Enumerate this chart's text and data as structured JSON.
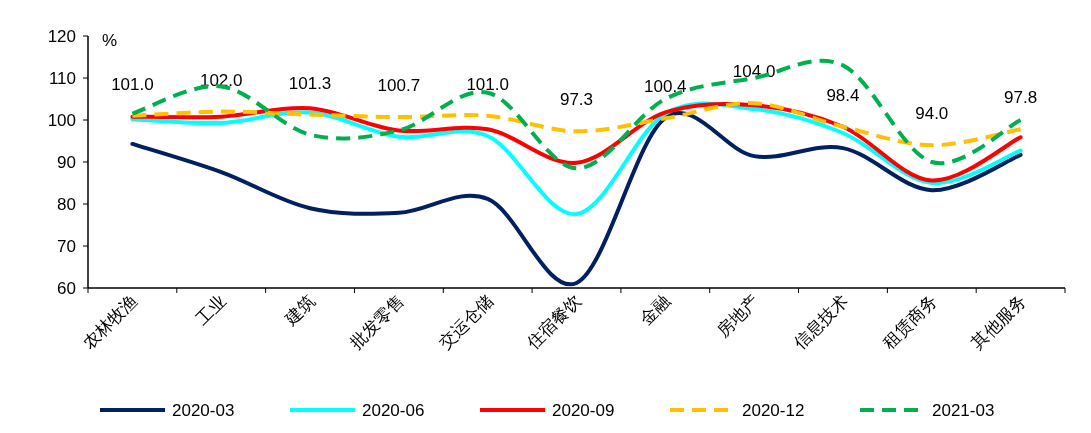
{
  "chart_data": {
    "type": "line",
    "ylabel": "%",
    "categories": [
      "农林牧渔",
      "工业",
      "建筑",
      "批发零售",
      "交运仓储",
      "住宿餐饮",
      "金融",
      "房地产",
      "信息技术",
      "租赁商务",
      "其他服务"
    ],
    "ylim": [
      60,
      120
    ],
    "yticks": [
      60,
      70,
      80,
      90,
      100,
      110,
      120
    ],
    "grid": false,
    "legend": "bottom",
    "marker": "none",
    "series": [
      {
        "name": "2020-03",
        "color": "#002060",
        "line_style": "solid",
        "values": [
          94.3,
          87.6,
          79.0,
          77.9,
          81.2,
          61.2,
          100.5,
          91.4,
          93.3,
          83.3,
          91.7
        ]
      },
      {
        "name": "2020-06",
        "color": "#00ffff",
        "line_style": "solid",
        "values": [
          100.2,
          99.3,
          101.8,
          96.0,
          96.2,
          77.6,
          101.5,
          102.6,
          96.9,
          85.0,
          92.7
        ]
      },
      {
        "name": "2020-09",
        "color": "#ff0000",
        "line_style": "solid",
        "values": [
          100.8,
          100.8,
          102.8,
          97.5,
          97.8,
          89.8,
          101.8,
          103.5,
          98.4,
          85.6,
          95.9
        ]
      },
      {
        "name": "2020-12",
        "color": "#ffc000",
        "line_style": "dashed",
        "values": [
          101.0,
          102.0,
          101.3,
          100.7,
          101.0,
          97.3,
          100.4,
          104.0,
          98.4,
          94.0,
          97.8
        ],
        "value_labels": [
          "101.0",
          "102.0",
          "101.3",
          "100.7",
          "101.0",
          "97.3",
          "100.4",
          "104.0",
          "98.4",
          "94.0",
          "97.8"
        ]
      },
      {
        "name": "2021-03",
        "color": "#00b050",
        "line_style": "dashed",
        "values": [
          101.5,
          108.0,
          96.5,
          97.5,
          106.5,
          88.5,
          105.0,
          110.0,
          113.0,
          90.0,
          100.0
        ]
      }
    ]
  }
}
